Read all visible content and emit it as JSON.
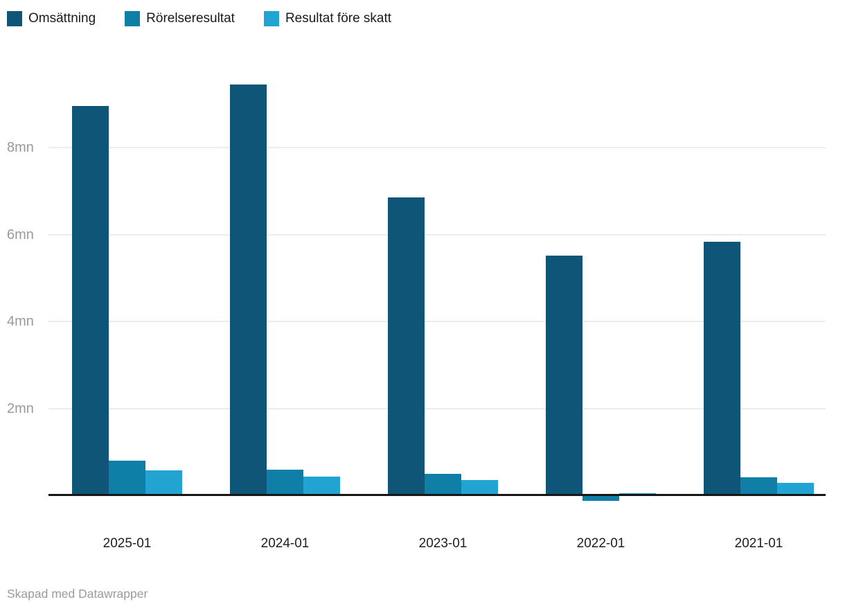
{
  "footer": {
    "credit": "Skapad med Datawrapper"
  },
  "chart_data": {
    "type": "bar",
    "title": "",
    "categories": [
      "2025-01",
      "2024-01",
      "2023-01",
      "2022-01",
      "2021-01"
    ],
    "series": [
      {
        "name": "Omsättning",
        "color": "#0e5578",
        "values": [
          8.95,
          9.45,
          6.85,
          5.52,
          5.83
        ]
      },
      {
        "name": "Rörelseresultat",
        "color": "#0f7fa8",
        "values": [
          0.79,
          0.59,
          0.5,
          -0.12,
          0.41
        ]
      },
      {
        "name": "Resultat före skatt",
        "color": "#21a4d1",
        "values": [
          0.57,
          0.43,
          0.35,
          0.05,
          0.28
        ]
      }
    ],
    "unit": "mn",
    "yticks": [
      2,
      4,
      6,
      8
    ],
    "ytick_labels": [
      "2mn",
      "4mn",
      "6mn",
      "8mn"
    ],
    "ylim": [
      -0.3,
      9.9
    ],
    "grid": "horizontal",
    "legend_position": "top",
    "xlabel": "",
    "ylabel": ""
  }
}
